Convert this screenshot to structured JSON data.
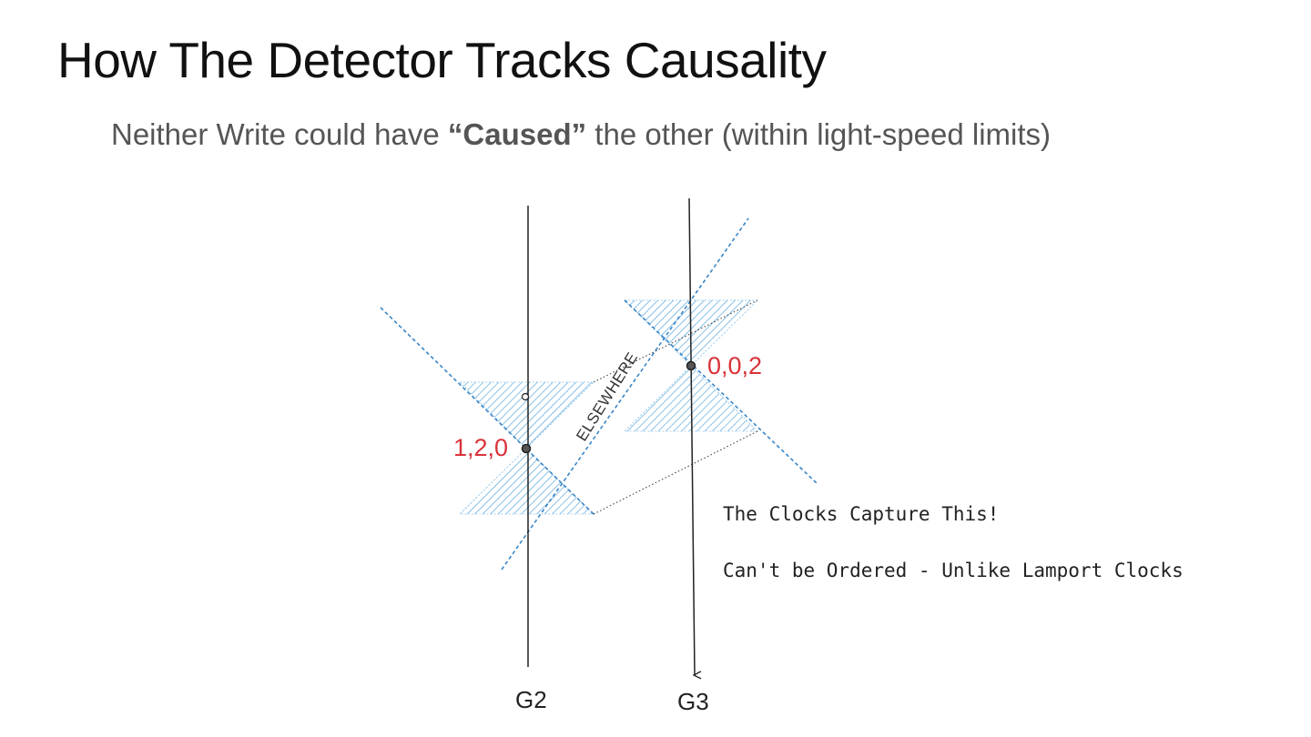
{
  "slide": {
    "title": "How The Detector Tracks Causality",
    "subtitle_prefix": "Neither Write could have ",
    "subtitle_emphasis": "“Caused”",
    "subtitle_suffix": " the other (within light-speed limits)"
  },
  "diagram": {
    "timelines": [
      {
        "id": "g2",
        "label": "G2"
      },
      {
        "id": "g3",
        "label": "G3"
      }
    ],
    "events": [
      {
        "id": "event-g2",
        "vector_clock": "1,2,0"
      },
      {
        "id": "event-g3",
        "vector_clock": "0,0,2"
      }
    ],
    "region_label": "ELSEWHERE",
    "notes": [
      "The Clocks Capture This!",
      "Can't be Ordered - Unlike Lamport Clocks"
    ],
    "colors": {
      "light_cone_line": "#3a86c8",
      "hatch": "#5aa7dc",
      "event_label": "#d9323a",
      "timeline": "#222222"
    }
  }
}
